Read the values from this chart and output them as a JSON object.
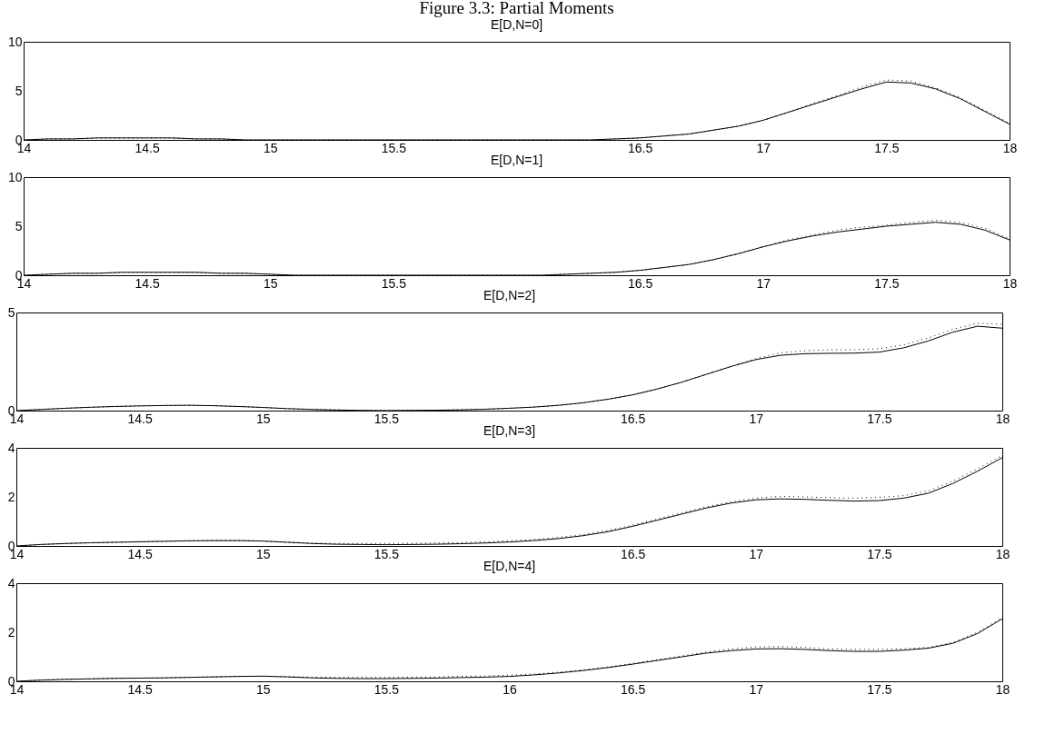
{
  "chart_data": [
    {
      "type": "line",
      "title": "Figure 3.3: Partial Moments",
      "subtitle": "E[D,N=0]",
      "x": [
        14,
        14.1,
        14.2,
        14.3,
        14.4,
        14.5,
        14.6,
        14.7,
        14.8,
        14.9,
        15,
        15.1,
        15.2,
        15.3,
        15.4,
        15.5,
        15.6,
        15.7,
        15.8,
        15.9,
        16,
        16.1,
        16.2,
        16.3,
        16.4,
        16.5,
        16.6,
        16.7,
        16.8,
        16.9,
        17,
        17.1,
        17.2,
        17.3,
        17.4,
        17.5,
        17.6,
        17.7,
        17.8,
        17.9,
        18
      ],
      "series": [
        {
          "color": "#000000",
          "line_style": "solid",
          "values": [
            0,
            0.1,
            0.1,
            0.2,
            0.2,
            0.2,
            0.2,
            0.1,
            0.1,
            0,
            0,
            0,
            0,
            0,
            0,
            0,
            0,
            0,
            0,
            0,
            0,
            0,
            0,
            0,
            0.1,
            0.2,
            0.4,
            0.6,
            1,
            1.4,
            2,
            2.8,
            3.6,
            4.4,
            5.2,
            5.9,
            5.8,
            5.2,
            4.2,
            2.9,
            1.6
          ]
        },
        {
          "color": "#000000",
          "line_style": "dotted",
          "values": [
            0,
            0.1,
            0.1,
            0.2,
            0.2,
            0.2,
            0.2,
            0.1,
            0.1,
            0,
            0,
            0,
            0,
            0,
            0,
            0,
            0,
            0,
            0,
            0,
            0,
            0,
            0,
            0,
            0.1,
            0.2,
            0.4,
            0.6,
            1,
            1.4,
            2,
            2.8,
            3.7,
            4.5,
            5.4,
            6.1,
            6,
            5.3,
            4.3,
            3,
            1.7
          ]
        }
      ],
      "xlim": [
        14,
        18
      ],
      "xticks": [
        14,
        14.5,
        15,
        15.5,
        16.5,
        17,
        17.5,
        18
      ],
      "ylim": [
        0,
        10
      ],
      "yticks": [
        0,
        5,
        10
      ]
    },
    {
      "type": "line",
      "title": "E[D,N=1]",
      "x": [
        14,
        14.1,
        14.2,
        14.3,
        14.4,
        14.5,
        14.6,
        14.7,
        14.8,
        14.9,
        15,
        15.1,
        15.2,
        15.3,
        15.4,
        15.5,
        15.6,
        15.7,
        15.8,
        15.9,
        16,
        16.1,
        16.2,
        16.3,
        16.4,
        16.5,
        16.6,
        16.7,
        16.8,
        16.9,
        17,
        17.1,
        17.2,
        17.3,
        17.4,
        17.5,
        17.6,
        17.7,
        17.8,
        17.9,
        18
      ],
      "series": [
        {
          "color": "#000000",
          "line_style": "solid",
          "values": [
            0,
            0.1,
            0.2,
            0.2,
            0.3,
            0.3,
            0.3,
            0.3,
            0.2,
            0.2,
            0.1,
            0,
            0,
            0,
            0,
            0,
            0,
            0,
            0,
            0,
            0,
            0,
            0.1,
            0.2,
            0.3,
            0.5,
            0.8,
            1.1,
            1.6,
            2.2,
            2.9,
            3.5,
            4,
            4.4,
            4.7,
            5,
            5.2,
            5.4,
            5.2,
            4.6,
            3.6
          ]
        },
        {
          "color": "#000000",
          "line_style": "dotted",
          "values": [
            0,
            0.1,
            0.2,
            0.2,
            0.3,
            0.3,
            0.3,
            0.3,
            0.2,
            0.2,
            0.1,
            0,
            0,
            0,
            0,
            0,
            0,
            0,
            0,
            0,
            0,
            0,
            0.1,
            0.2,
            0.3,
            0.5,
            0.8,
            1.1,
            1.6,
            2.2,
            2.9,
            3.6,
            4.1,
            4.6,
            4.9,
            5.1,
            5.4,
            5.6,
            5.4,
            4.8,
            3.7
          ]
        }
      ],
      "xlim": [
        14,
        18
      ],
      "xticks": [
        14,
        14.5,
        15,
        15.5,
        16.5,
        17,
        17.5,
        18
      ],
      "ylim": [
        0,
        10
      ],
      "yticks": [
        0,
        5,
        10
      ]
    },
    {
      "type": "line",
      "title": "E[D,N=2]",
      "x": [
        14,
        14.1,
        14.2,
        14.3,
        14.4,
        14.5,
        14.6,
        14.7,
        14.8,
        14.9,
        15,
        15.1,
        15.2,
        15.3,
        15.4,
        15.5,
        15.6,
        15.7,
        15.8,
        15.9,
        16,
        16.1,
        16.2,
        16.3,
        16.4,
        16.5,
        16.6,
        16.7,
        16.8,
        16.9,
        17,
        17.1,
        17.2,
        17.3,
        17.4,
        17.5,
        17.6,
        17.7,
        17.8,
        17.9,
        18
      ],
      "series": [
        {
          "color": "#000000",
          "line_style": "solid",
          "values": [
            0,
            0.06,
            0.12,
            0.17,
            0.21,
            0.24,
            0.26,
            0.27,
            0.25,
            0.21,
            0.16,
            0.1,
            0.06,
            0.03,
            0.01,
            0,
            0.01,
            0.02,
            0.04,
            0.07,
            0.12,
            0.18,
            0.27,
            0.4,
            0.58,
            0.8,
            1.1,
            1.45,
            1.85,
            2.25,
            2.6,
            2.82,
            2.9,
            2.92,
            2.93,
            2.98,
            3.2,
            3.55,
            4,
            4.3,
            4.2
          ]
        },
        {
          "color": "#000000",
          "line_style": "dotted",
          "values": [
            0,
            0.06,
            0.12,
            0.17,
            0.21,
            0.24,
            0.26,
            0.27,
            0.25,
            0.21,
            0.16,
            0.1,
            0.06,
            0.03,
            0.01,
            0,
            0.01,
            0.02,
            0.04,
            0.07,
            0.12,
            0.18,
            0.27,
            0.4,
            0.58,
            0.8,
            1.1,
            1.45,
            1.85,
            2.25,
            2.65,
            2.95,
            3.05,
            3.1,
            3.1,
            3.15,
            3.35,
            3.7,
            4.15,
            4.45,
            4.4
          ]
        }
      ],
      "xlim": [
        14,
        18
      ],
      "xticks": [
        14,
        14.5,
        15,
        15.5,
        16.5,
        17,
        17.5,
        18
      ],
      "ylim": [
        0,
        5
      ],
      "yticks": [
        0,
        5
      ]
    },
    {
      "type": "line",
      "title": "E[D,N=3]",
      "x": [
        14,
        14.1,
        14.2,
        14.3,
        14.4,
        14.5,
        14.6,
        14.7,
        14.8,
        14.9,
        15,
        15.1,
        15.2,
        15.3,
        15.4,
        15.5,
        15.6,
        15.7,
        15.8,
        15.9,
        16,
        16.1,
        16.2,
        16.3,
        16.4,
        16.5,
        16.6,
        16.7,
        16.8,
        16.9,
        17,
        17.1,
        17.2,
        17.3,
        17.4,
        17.5,
        17.6,
        17.7,
        17.8,
        17.9,
        18
      ],
      "series": [
        {
          "color": "#000000",
          "line_style": "solid",
          "values": [
            0,
            0.06,
            0.1,
            0.13,
            0.15,
            0.17,
            0.19,
            0.21,
            0.22,
            0.22,
            0.2,
            0.15,
            0.1,
            0.07,
            0.06,
            0.05,
            0.06,
            0.07,
            0.09,
            0.12,
            0.16,
            0.22,
            0.3,
            0.42,
            0.58,
            0.8,
            1.05,
            1.3,
            1.55,
            1.75,
            1.88,
            1.92,
            1.9,
            1.86,
            1.83,
            1.85,
            1.95,
            2.15,
            2.55,
            3.05,
            3.6
          ]
        },
        {
          "color": "#000000",
          "line_style": "dotted",
          "values": [
            0,
            0.06,
            0.1,
            0.13,
            0.15,
            0.17,
            0.19,
            0.21,
            0.22,
            0.22,
            0.2,
            0.16,
            0.12,
            0.1,
            0.1,
            0.1,
            0.11,
            0.12,
            0.14,
            0.17,
            0.21,
            0.27,
            0.35,
            0.47,
            0.63,
            0.85,
            1.1,
            1.35,
            1.6,
            1.8,
            1.95,
            2.02,
            2,
            1.97,
            1.95,
            1.98,
            2.05,
            2.25,
            2.65,
            3.15,
            3.7
          ]
        }
      ],
      "xlim": [
        14,
        18
      ],
      "xticks": [
        14,
        14.5,
        15,
        15.5,
        16.5,
        17,
        17.5,
        18
      ],
      "ylim": [
        0,
        4
      ],
      "yticks": [
        0,
        2,
        4
      ]
    },
    {
      "type": "line",
      "title": "E[D,N=4]",
      "x": [
        14,
        14.1,
        14.2,
        14.3,
        14.4,
        14.5,
        14.6,
        14.7,
        14.8,
        14.9,
        15,
        15.1,
        15.2,
        15.3,
        15.4,
        15.5,
        15.6,
        15.7,
        15.8,
        15.9,
        16,
        16.1,
        16.2,
        16.3,
        16.4,
        16.5,
        16.6,
        16.7,
        16.8,
        16.9,
        17,
        17.1,
        17.2,
        17.3,
        17.4,
        17.5,
        17.6,
        17.7,
        17.8,
        17.9,
        18
      ],
      "series": [
        {
          "color": "#000000",
          "line_style": "solid",
          "values": [
            0,
            0.05,
            0.08,
            0.1,
            0.12,
            0.13,
            0.14,
            0.16,
            0.18,
            0.2,
            0.21,
            0.18,
            0.14,
            0.12,
            0.11,
            0.11,
            0.12,
            0.13,
            0.15,
            0.17,
            0.2,
            0.26,
            0.34,
            0.44,
            0.56,
            0.7,
            0.85,
            1,
            1.15,
            1.25,
            1.32,
            1.33,
            1.3,
            1.25,
            1.22,
            1.22,
            1.27,
            1.35,
            1.55,
            1.95,
            2.55
          ]
        },
        {
          "color": "#000000",
          "line_style": "dotted",
          "values": [
            0,
            0.05,
            0.08,
            0.1,
            0.12,
            0.13,
            0.14,
            0.16,
            0.18,
            0.2,
            0.21,
            0.19,
            0.17,
            0.16,
            0.16,
            0.16,
            0.17,
            0.18,
            0.2,
            0.22,
            0.25,
            0.3,
            0.37,
            0.47,
            0.59,
            0.73,
            0.88,
            1.04,
            1.2,
            1.32,
            1.4,
            1.42,
            1.38,
            1.32,
            1.3,
            1.3,
            1.33,
            1.38,
            1.58,
            2,
            2.6
          ]
        }
      ],
      "xlim": [
        14,
        18
      ],
      "xticks": [
        14,
        14.5,
        15,
        15.5,
        16,
        16.5,
        17,
        17.5,
        18
      ],
      "ylim": [
        0,
        4
      ],
      "yticks": [
        0,
        2,
        4
      ]
    }
  ]
}
